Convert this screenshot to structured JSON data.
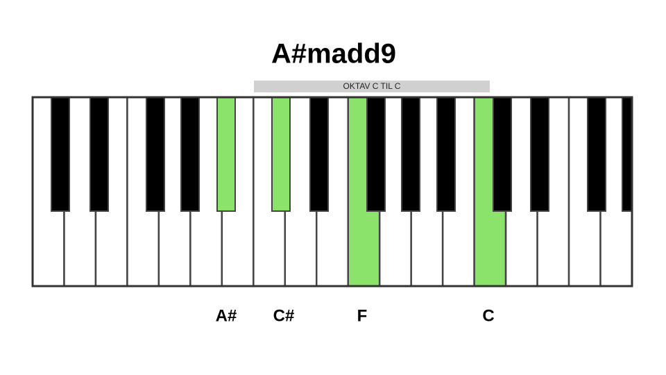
{
  "title": "A#madd9",
  "octave_label": "OKTAV C TIL C",
  "notes": [
    "A#",
    "C#",
    "F",
    "C"
  ]
}
